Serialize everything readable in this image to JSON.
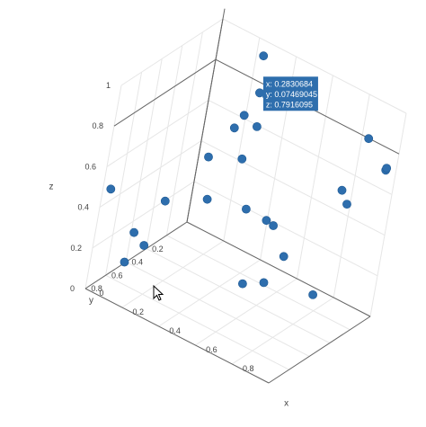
{
  "chart_data": {
    "type": "scatter",
    "title": "",
    "marker_color": "#2e6ead",
    "grid": true,
    "legend": "none",
    "axes": {
      "x": {
        "label": "x",
        "range": [
          0,
          1
        ],
        "ticks": [
          "0",
          "0.2",
          "0.4",
          "0.6",
          "0.8"
        ]
      },
      "y": {
        "label": "y",
        "range": [
          0,
          1
        ],
        "ticks": [
          "0.2",
          "0.4",
          "0.6",
          "0.8"
        ]
      },
      "z": {
        "label": "z",
        "range": [
          0,
          1
        ],
        "ticks": [
          "0",
          "0.2",
          "0.4",
          "0.6",
          "0.8",
          "1"
        ]
      }
    },
    "points": [
      {
        "x": 0.283,
        "y": 0.075,
        "z": 0.792
      },
      {
        "x": 0.244,
        "y": 0.018,
        "z": 0.937
      },
      {
        "x": 0.241,
        "y": 0.11,
        "z": 0.673
      },
      {
        "x": 0.222,
        "y": 0.152,
        "z": 0.616
      },
      {
        "x": 0.342,
        "y": 0.17,
        "z": 0.684
      },
      {
        "x": 0.171,
        "y": 0.269,
        "z": 0.488
      },
      {
        "x": 0.333,
        "y": 0.253,
        "z": 0.548
      },
      {
        "x": 0.193,
        "y": 0.249,
        "z": 0.283
      },
      {
        "x": 0.074,
        "y": 0.448,
        "z": 0.284
      },
      {
        "x": 0.066,
        "y": 0.579,
        "z": 0.105
      },
      {
        "x": 0.069,
        "y": 0.723,
        "z": 0.217
      },
      {
        "x": 0.01,
        "y": 0.935,
        "z": 0.473
      },
      {
        "x": 0.102,
        "y": 0.844,
        "z": 0.127
      },
      {
        "x": 0.367,
        "y": 0.183,
        "z": 0.294
      },
      {
        "x": 0.467,
        "y": 0.159,
        "z": 0.277
      },
      {
        "x": 0.526,
        "y": 0.203,
        "z": 0.293
      },
      {
        "x": 0.594,
        "y": 0.178,
        "z": 0.165
      },
      {
        "x": 0.808,
        "y": 0.255,
        "z": 0.101
      },
      {
        "x": 0.643,
        "y": 0.457,
        "z": 0.15
      },
      {
        "x": 0.615,
        "y": 0.629,
        "z": 0.188
      },
      {
        "x": 0.751,
        "y": 0.009,
        "z": 0.508
      },
      {
        "x": 0.803,
        "y": 0.043,
        "z": 0.475
      },
      {
        "x": 0.835,
        "y": 0.001,
        "z": 0.799
      },
      {
        "x": 0.975,
        "y": 0.06,
        "z": 0.728
      },
      {
        "x": 0.951,
        "y": 0.001,
        "z": 0.707
      }
    ],
    "hover": {
      "x": "0.2830684",
      "y": "0.07469045",
      "z": "0.7916095"
    }
  }
}
